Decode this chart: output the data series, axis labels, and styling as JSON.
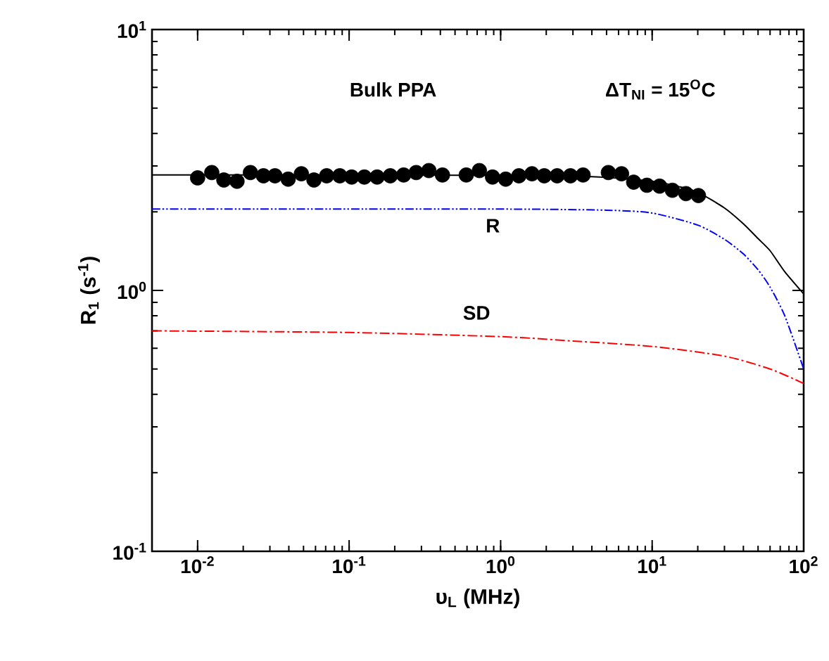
{
  "chart_data": {
    "type": "scatter",
    "xlabel": "υ$_{L}$ (MHz)",
    "ylabel": "R$_{1}$ (s$^{-1}$)",
    "log": "xy",
    "xlim": [
      0.005,
      100
    ],
    "ylim": [
      0.1,
      10
    ],
    "xticks": [
      {
        "value": 0.01,
        "label": "10$^{-2}$"
      },
      {
        "value": 0.1,
        "label": "10$^{-1}$"
      },
      {
        "value": 1,
        "label": "10$^{0}$"
      },
      {
        "value": 10,
        "label": "10$^{1}$"
      },
      {
        "value": 100,
        "label": "10$^{2}$"
      }
    ],
    "yticks": [
      {
        "value": 0.1,
        "label": "10$^{-1}$"
      },
      {
        "value": 1,
        "label": "10$^{0}$"
      },
      {
        "value": 10,
        "label": "10$^{1}$"
      }
    ],
    "grid": false,
    "series": [
      {
        "marker": "circle",
        "color": "#000000",
        "x": [
          0.01,
          0.0124,
          0.0149,
          0.0182,
          0.0223,
          0.0272,
          0.0324,
          0.0396,
          0.0484,
          0.0586,
          0.0711,
          0.0868,
          0.104,
          0.126,
          0.153,
          0.187,
          0.229,
          0.277,
          0.336,
          0.413,
          0.593,
          0.724,
          0.884,
          1.08,
          1.32,
          1.61,
          1.94,
          2.36,
          2.89,
          3.5,
          5.14,
          6.28,
          7.55,
          9.23,
          11.2,
          13.6,
          16.7,
          20.2
        ],
        "values": [
          2.7,
          2.83,
          2.65,
          2.62,
          2.83,
          2.75,
          2.75,
          2.67,
          2.8,
          2.65,
          2.75,
          2.75,
          2.72,
          2.72,
          2.72,
          2.75,
          2.77,
          2.83,
          2.88,
          2.77,
          2.77,
          2.88,
          2.72,
          2.67,
          2.75,
          2.8,
          2.75,
          2.75,
          2.75,
          2.77,
          2.83,
          2.8,
          2.6,
          2.53,
          2.51,
          2.42,
          2.35,
          2.31
        ]
      },
      {
        "type": "line",
        "line_style": "solid",
        "marker": "none",
        "color": "#000000",
        "x": [
          0.005,
          0.1,
          1,
          3,
          5,
          10,
          15,
          20,
          30,
          40,
          50,
          60,
          75,
          100
        ],
        "values": [
          2.77,
          2.77,
          2.76,
          2.74,
          2.71,
          2.62,
          2.5,
          2.38,
          2.07,
          1.8,
          1.58,
          1.42,
          1.18,
          0.97
        ]
      },
      {
        "type": "line",
        "line_style": "dashdotdot",
        "marker": "none",
        "color": "#0000ff",
        "x": [
          0.005,
          1,
          5,
          10,
          20,
          30,
          40,
          50,
          60,
          75,
          100
        ],
        "values": [
          2.05,
          2.05,
          2.03,
          1.98,
          1.78,
          1.57,
          1.38,
          1.2,
          1.03,
          0.8,
          0.5
        ]
      },
      {
        "type": "line",
        "line_style": "dashdot",
        "marker": "none",
        "color": "#ff0000",
        "x": [
          0.005,
          0.1,
          1,
          3,
          10,
          30,
          60,
          100
        ],
        "values": [
          0.7,
          0.69,
          0.665,
          0.64,
          0.61,
          0.56,
          0.5,
          0.44
        ]
      }
    ],
    "annotations": [
      "Bulk PPA",
      "ΔT$_{NI}$ = 15$^{O}$C",
      "R",
      "SD"
    ]
  }
}
